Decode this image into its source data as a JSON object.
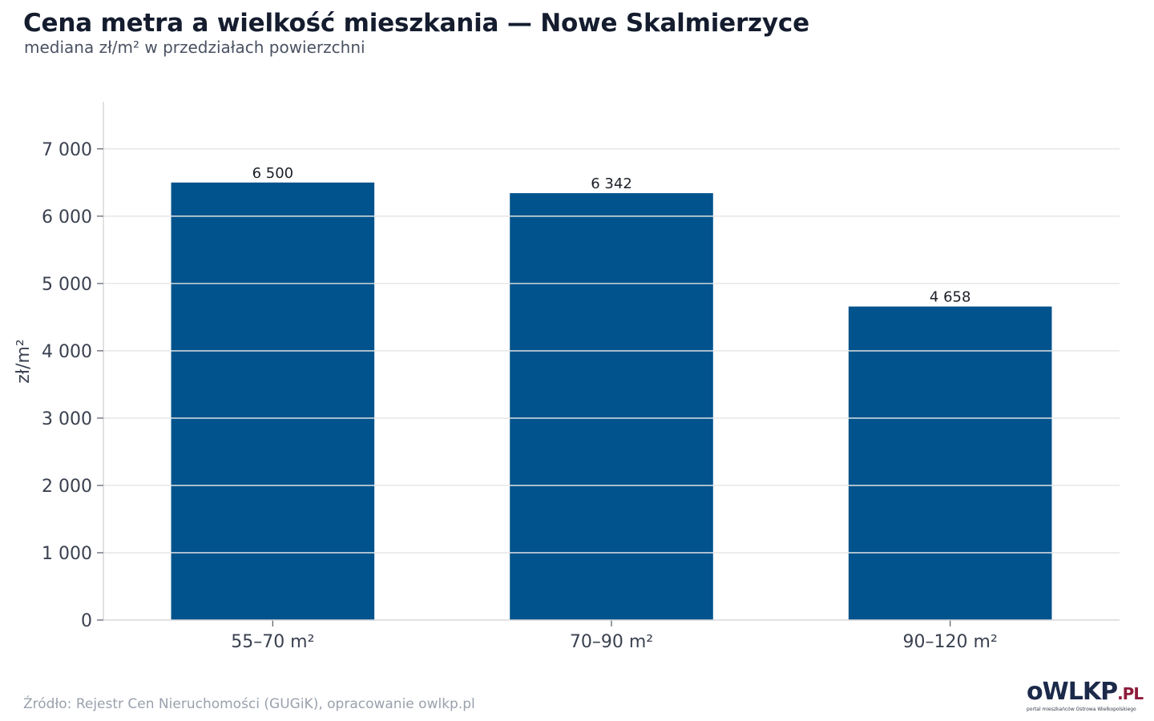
{
  "chart_data": {
    "type": "bar",
    "title": "Cena metra a wielkość mieszkania — Nowe Skalmierzyce",
    "subtitle": "mediana zł/m² w przedziałach powierzchni",
    "xlabel": "",
    "ylabel": "zł/m²",
    "categories": [
      "55–70 m²",
      "70–90 m²",
      "90–120 m²"
    ],
    "values": [
      6500,
      6342,
      4658
    ],
    "value_labels": [
      "6 500",
      "6 342",
      "4 658"
    ],
    "ylim": [
      0,
      7700
    ],
    "yticks": [
      0,
      1000,
      2000,
      3000,
      4000,
      5000,
      6000,
      7000
    ],
    "ytick_labels": [
      "0",
      "1 000",
      "2 000",
      "3 000",
      "4 000",
      "5 000",
      "6 000",
      "7 000"
    ],
    "grid": true,
    "legend": "none",
    "bar_color": "#00538c",
    "grid_color": "#e6e6e6",
    "axis_color": "#d9d9d9"
  },
  "source": "Źródło: Rejestr Cen Nieruchomości (GUGiK), opracowanie owlkp.pl",
  "logo": {
    "main": "oWLKP",
    "suffix": ".PL",
    "tagline": "portal mieszkańców Ostrowa Wielkopolskiego"
  }
}
